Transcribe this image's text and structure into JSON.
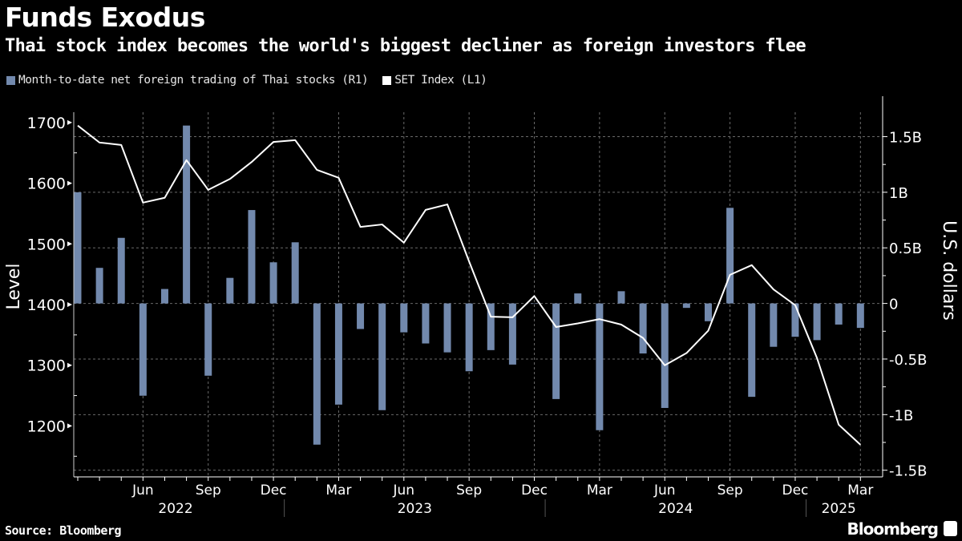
{
  "header": {
    "title": "Funds Exodus",
    "subtitle": "Thai stock index becomes the world's biggest decliner as foreign investors flee"
  },
  "footer": {
    "source": "Source: Bloomberg",
    "brand": "Bloomberg"
  },
  "colors": {
    "bars": "#7289ad",
    "line": "#ffffff",
    "background": "#000000",
    "grid": "#777777"
  },
  "chart_data": {
    "type": "bar+line",
    "title": "Funds Exodus",
    "subtitle": "Thai stock index becomes the world's biggest decliner as foreign investors flee",
    "legend": {
      "placement": "top-left",
      "entries": [
        "Month-to-date net foreign trading of Thai stocks (R1)",
        "SET Index (L1)"
      ]
    },
    "grid": true,
    "x": [
      "2022-03",
      "2022-04",
      "2022-05",
      "2022-06",
      "2022-07",
      "2022-08",
      "2022-09",
      "2022-10",
      "2022-11",
      "2022-12",
      "2023-01",
      "2023-02",
      "2023-03",
      "2023-04",
      "2023-05",
      "2023-06",
      "2023-07",
      "2023-08",
      "2023-09",
      "2023-10",
      "2023-11",
      "2023-12",
      "2024-01",
      "2024-02",
      "2024-03",
      "2024-04",
      "2024-05",
      "2024-06",
      "2024-07",
      "2024-08",
      "2024-09",
      "2024-10",
      "2024-11",
      "2024-12",
      "2025-01",
      "2025-02",
      "2025-03"
    ],
    "x_tick_labels": [
      {
        "month": "2022-06",
        "label": "Jun"
      },
      {
        "month": "2022-09",
        "label": "Sep"
      },
      {
        "month": "2022-12",
        "label": "Dec"
      },
      {
        "month": "2023-03",
        "label": "Mar"
      },
      {
        "month": "2023-06",
        "label": "Jun"
      },
      {
        "month": "2023-09",
        "label": "Sep"
      },
      {
        "month": "2023-12",
        "label": "Dec"
      },
      {
        "month": "2024-03",
        "label": "Mar"
      },
      {
        "month": "2024-06",
        "label": "Jun"
      },
      {
        "month": "2024-09",
        "label": "Sep"
      },
      {
        "month": "2024-12",
        "label": "Dec"
      },
      {
        "month": "2025-03",
        "label": "Mar"
      }
    ],
    "year_labels": [
      "2022",
      "2023",
      "2024",
      "2025"
    ],
    "left_axis": {
      "label": "Level",
      "range": [
        1116,
        1717
      ],
      "ticks": [
        1200,
        1300,
        1400,
        1500,
        1600,
        1700
      ],
      "tick_labels": [
        "1200",
        "1300",
        "1400",
        "1500",
        "1600",
        "1700"
      ]
    },
    "right_axis": {
      "label": "U.S. dollars",
      "unit": "billion USD",
      "range": [
        -1.56,
        1.72
      ],
      "ticks": [
        -1.5,
        -1,
        -0.5,
        0,
        0.5,
        1,
        1.5
      ],
      "tick_labels": [
        "-1.5B",
        "-1B",
        "-0.5B",
        "0",
        "0.5B",
        "1B",
        "1.5B"
      ]
    },
    "series": [
      {
        "name": "Month-to-date net foreign trading of Thai stocks (R1)",
        "type": "bar",
        "axis": "right",
        "color": "#7289ad",
        "values": [
          1.0,
          0.32,
          0.59,
          -0.83,
          0.13,
          1.6,
          -0.65,
          0.23,
          0.84,
          0.37,
          0.55,
          -1.27,
          -0.91,
          -0.23,
          -0.96,
          -0.26,
          -0.36,
          -0.44,
          -0.61,
          -0.42,
          -0.55,
          0.0,
          -0.86,
          0.09,
          -1.14,
          0.11,
          -0.45,
          -0.94,
          -0.04,
          -0.16,
          0.86,
          -0.84,
          -0.39,
          -0.3,
          -0.33,
          -0.19,
          -0.22
        ]
      },
      {
        "name": "SET Index (L1)",
        "type": "line",
        "axis": "left",
        "color": "#ffffff",
        "values": [
          1695,
          1667,
          1663,
          1568,
          1576,
          1638,
          1589,
          1607,
          1635,
          1668,
          1671,
          1622,
          1609,
          1528,
          1532,
          1502,
          1556,
          1565,
          1471,
          1380,
          1379,
          1414,
          1363,
          1369,
          1376,
          1367,
          1345,
          1300,
          1320,
          1357,
          1449,
          1465,
          1425,
          1399,
          1312,
          1202,
          1169
        ]
      }
    ]
  }
}
